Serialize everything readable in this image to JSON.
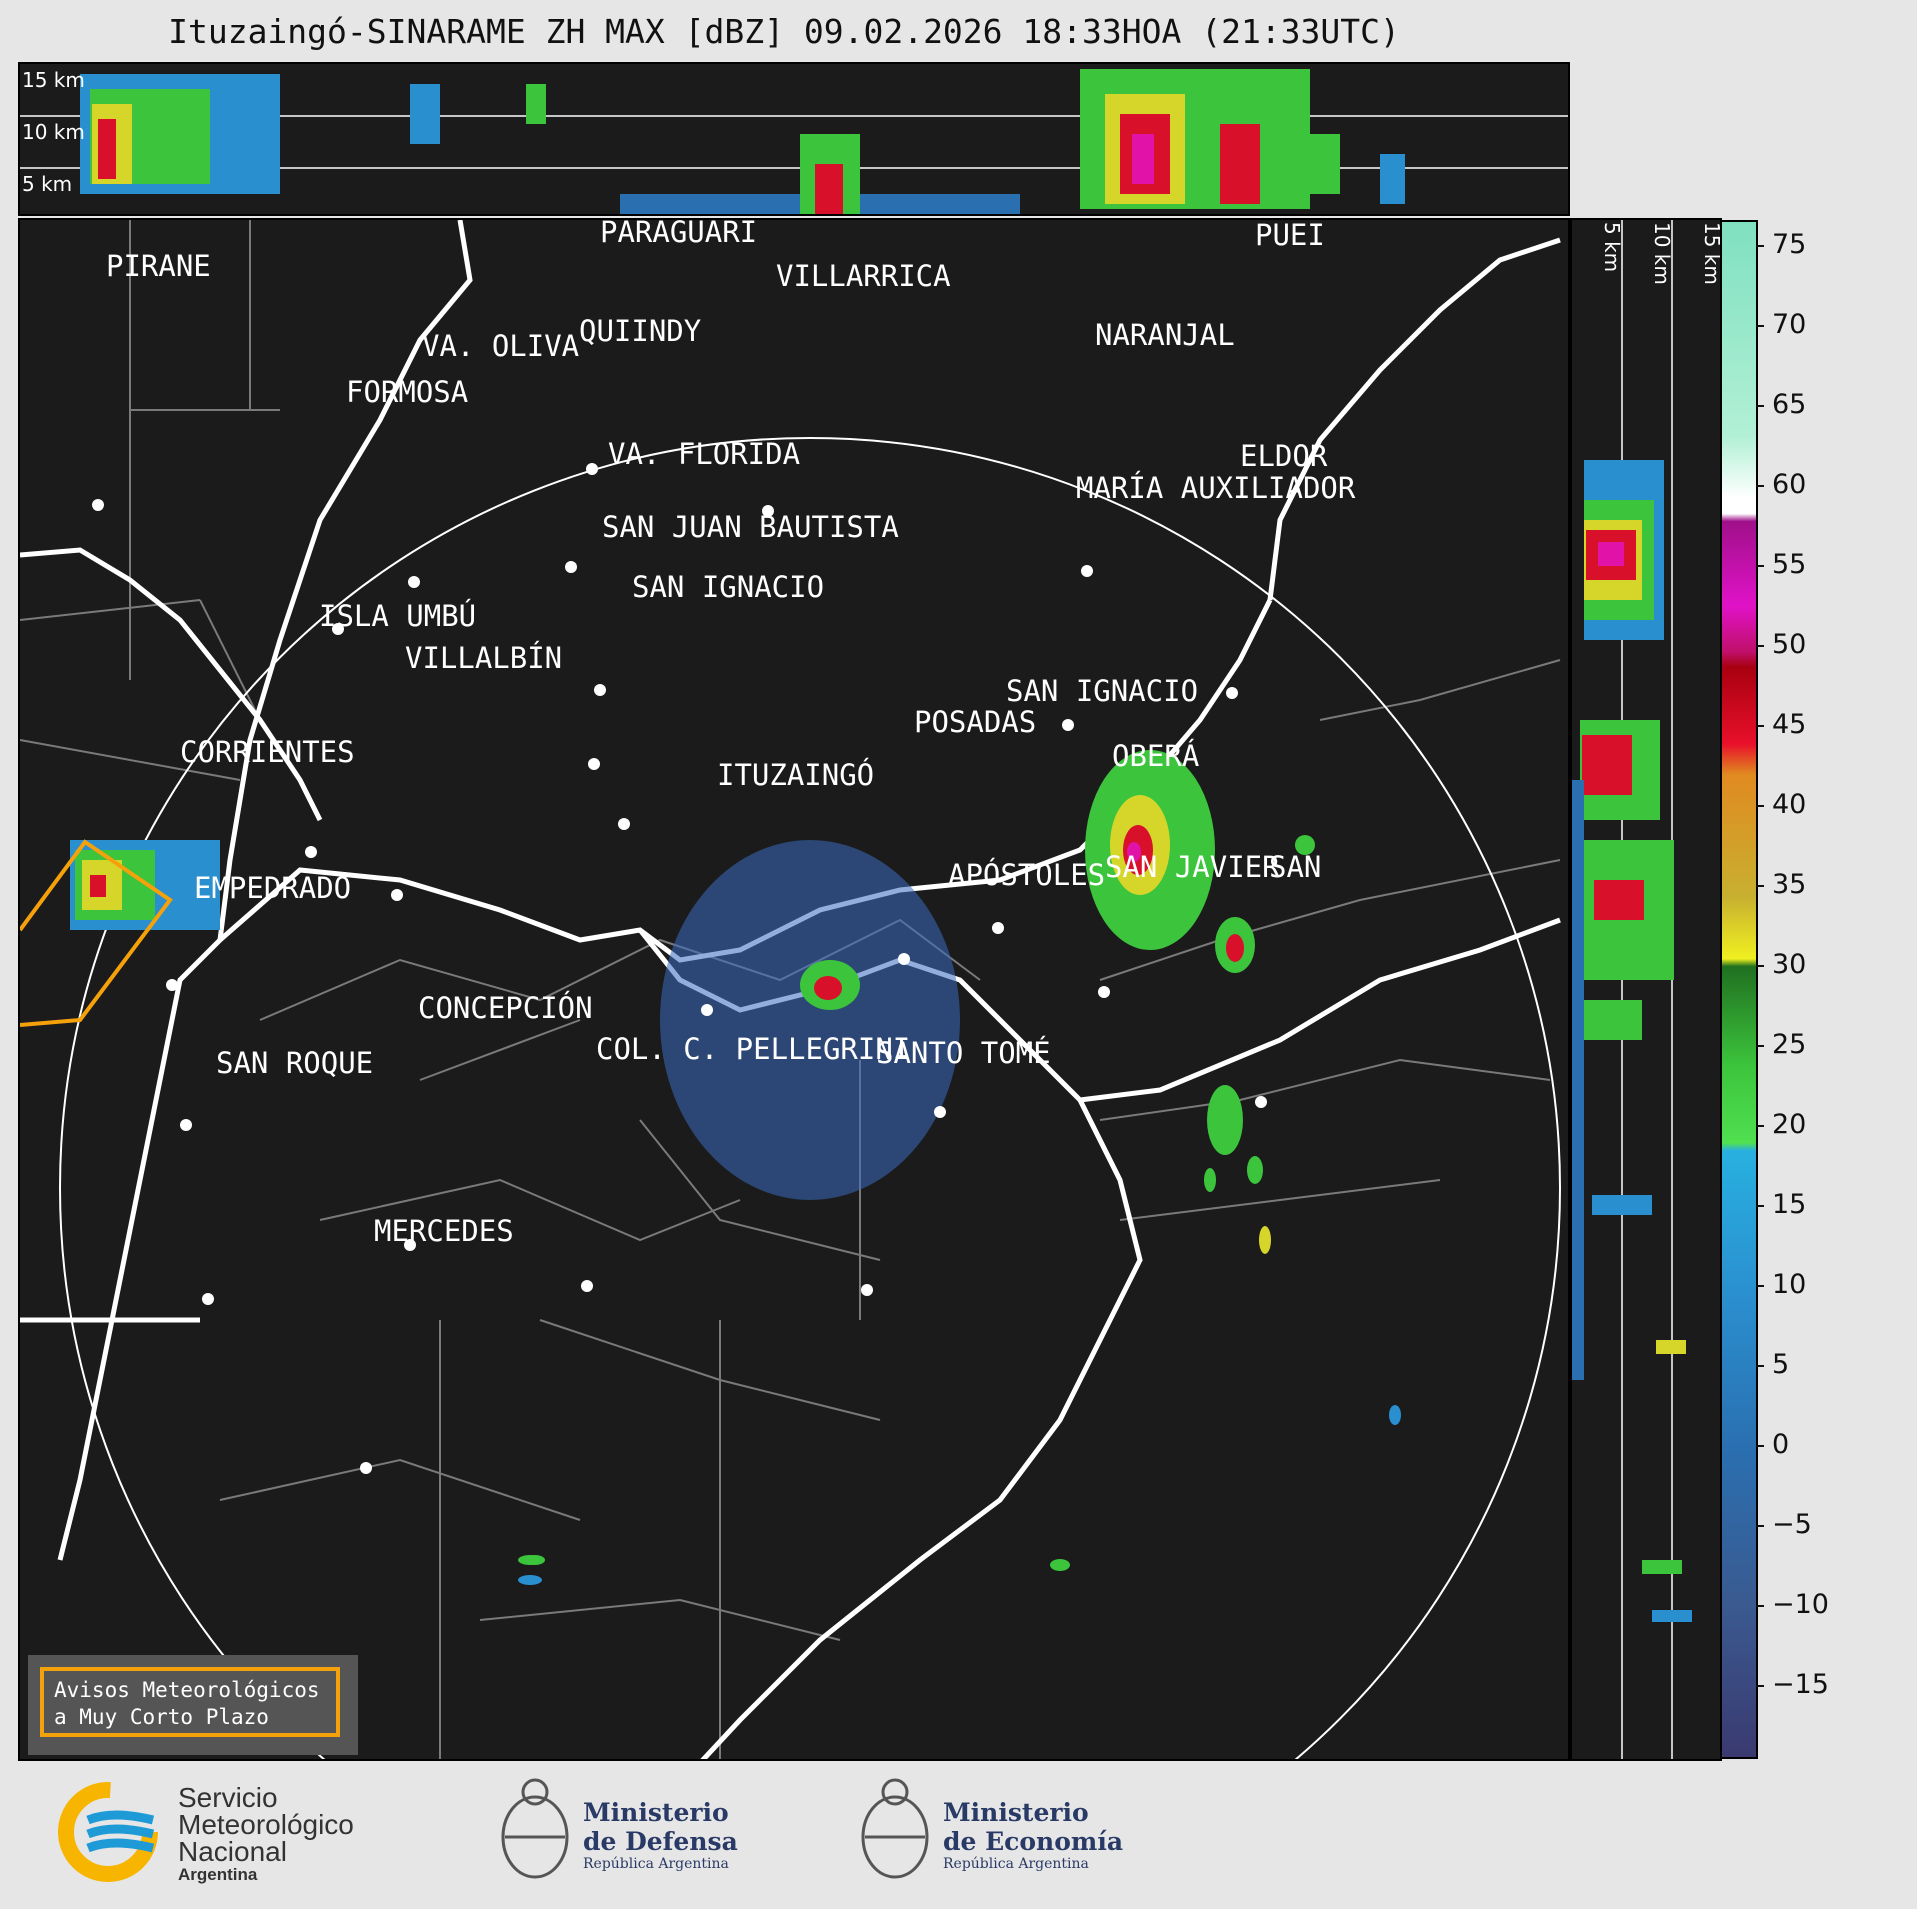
{
  "title": "Ituzaingó-SINARAME ZH MAX [dBZ] 09.02.2026 18:33HOA (21:33UTC)",
  "top_panel": {
    "labels": [
      "15 km",
      "10 km",
      "5 km"
    ]
  },
  "side_panel": {
    "labels": [
      "5 km",
      "10 km",
      "15 km"
    ]
  },
  "colorbar": {
    "ticks": [
      "75",
      "70",
      "65",
      "60",
      "55",
      "50",
      "45",
      "40",
      "35",
      "30",
      "25",
      "20",
      "15",
      "10",
      "5",
      "0",
      "−5",
      "−10",
      "−15"
    ]
  },
  "cities": [
    {
      "name": "PIRANE"
    },
    {
      "name": "PARAGUARÍ"
    },
    {
      "name": "VILLARRICA"
    },
    {
      "name": "VA. OLIVA"
    },
    {
      "name": "QUIINDY"
    },
    {
      "name": "NARANJAL"
    },
    {
      "name": "FORMOSA"
    },
    {
      "name": "ELDOR"
    },
    {
      "name": "VA. FLORIDA"
    },
    {
      "name": "MARÍA AUXILIADOR"
    },
    {
      "name": "SAN JUAN BAUTISTA"
    },
    {
      "name": "SAN IGNACIO"
    },
    {
      "name": "ISLA UMBÚ"
    },
    {
      "name": "VILLALBÍN"
    },
    {
      "name": "SAN IGNACIO"
    },
    {
      "name": "POSADAS"
    },
    {
      "name": "CORRIENTES"
    },
    {
      "name": "ITUZAINGÓ"
    },
    {
      "name": "OBERÁ"
    },
    {
      "name": "APÓSTOLES"
    },
    {
      "name": "SAN JAVIER"
    },
    {
      "name": "SAN"
    },
    {
      "name": "EMPEDRADO"
    },
    {
      "name": "CONCEPCIÓN"
    },
    {
      "name": "COL. C. PELLEGRINI"
    },
    {
      "name": "SANTO TOMÉ"
    },
    {
      "name": "SAN ROQUE"
    },
    {
      "name": "MERCEDES"
    },
    {
      "name": "PUEI"
    }
  ],
  "warning_box": {
    "line1": "Avisos Meteorológicos",
    "line2": "a Muy Corto Plazo"
  },
  "footer": {
    "smn_line1": "Servicio",
    "smn_line2": "Meteorológico",
    "smn_line3": "Nacional",
    "smn_line4": "Argentina",
    "defensa_line1": "Ministerio",
    "defensa_line2": "de Defensa",
    "defensa_line3": "República Argentina",
    "economia_line1": "Ministerio",
    "economia_line2": "de Economía",
    "economia_line3": "República Argentina"
  },
  "colors": {
    "background": "#1b1b1b",
    "warning": "#f5a10b",
    "smn_blue": "#1e9bd7",
    "smn_yellow": "#f7b500"
  }
}
